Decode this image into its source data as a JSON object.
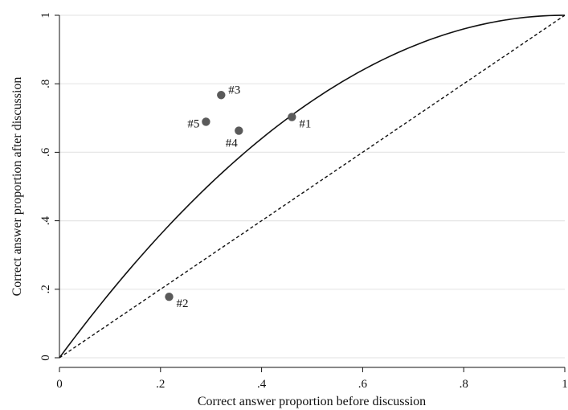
{
  "chart_data": {
    "type": "scatter",
    "xlabel": "Correct answer proportion before discussion",
    "ylabel": "Correct answer proportion after discussion",
    "xlim": [
      0,
      1
    ],
    "ylim": [
      0,
      1
    ],
    "x_ticks": [
      {
        "value": 0,
        "label": "0"
      },
      {
        "value": 0.2,
        "label": ".2"
      },
      {
        "value": 0.4,
        "label": ".4"
      },
      {
        "value": 0.6,
        "label": ".6"
      },
      {
        "value": 0.8,
        "label": ".8"
      },
      {
        "value": 1,
        "label": "1"
      }
    ],
    "y_ticks": [
      {
        "value": 0,
        "label": "0"
      },
      {
        "value": 0.2,
        "label": ".2"
      },
      {
        "value": 0.4,
        "label": ".4"
      },
      {
        "value": 0.6,
        "label": ".6"
      },
      {
        "value": 0.8,
        "label": ".8"
      },
      {
        "value": 1,
        "label": "1"
      }
    ],
    "grid": "horizontal",
    "points": [
      {
        "label": "#1",
        "x": 0.46,
        "y": 0.703,
        "label_side": "right-below"
      },
      {
        "label": "#2",
        "x": 0.217,
        "y": 0.178,
        "label_side": "right-below"
      },
      {
        "label": "#3",
        "x": 0.32,
        "y": 0.767,
        "label_side": "right-above"
      },
      {
        "label": "#4",
        "x": 0.355,
        "y": 0.663,
        "label_side": "below-left"
      },
      {
        "label": "#5",
        "x": 0.29,
        "y": 0.689,
        "label_side": "left"
      }
    ],
    "reference_lines": [
      {
        "kind": "diagonal",
        "style": "dashed",
        "formula": "y = x"
      },
      {
        "kind": "curve",
        "style": "solid",
        "formula": "y = 1 - (1 - x)^2"
      }
    ],
    "colors": {
      "points": "#5a5a5a",
      "grid": "#e6e6e6",
      "axis": "#111111",
      "curve": "#111111"
    }
  }
}
